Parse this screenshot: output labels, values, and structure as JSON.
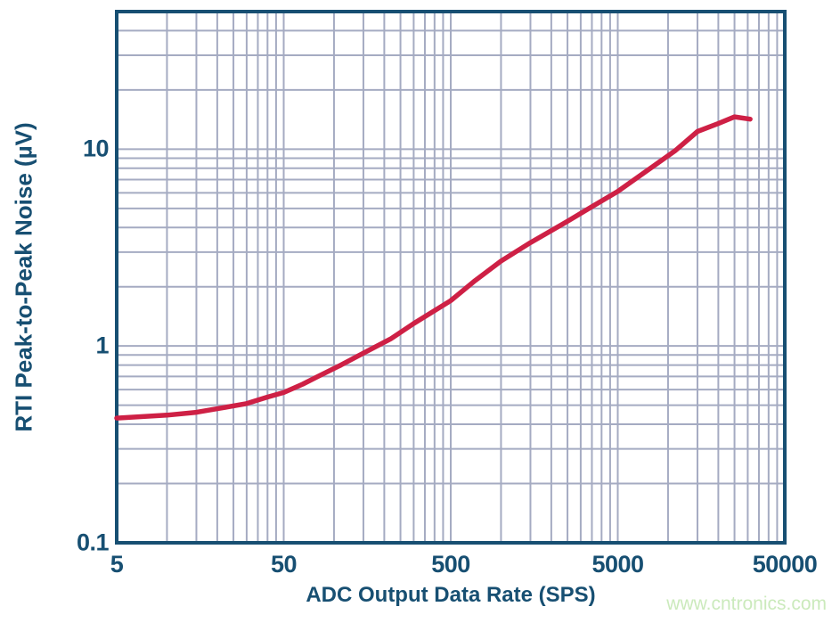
{
  "watermark": "www.cntronics.com",
  "chart_data": {
    "type": "line",
    "title": "",
    "xlabel": "ADC Output Data Rate (SPS)",
    "ylabel": "RTI Peak-to-Peak Noise (µV)",
    "x_scale": "log",
    "y_scale": "log",
    "xlim": [
      5,
      50000
    ],
    "ylim": [
      0.1,
      50
    ],
    "grid": "on (log major + minor)",
    "legend": "none",
    "x_ticks": [
      {
        "value": 5,
        "label": "5"
      },
      {
        "value": 50,
        "label": "50"
      },
      {
        "value": 500,
        "label": "500"
      },
      {
        "value": 5000,
        "label": "5000"
      },
      {
        "value": 50000,
        "label": "50000"
      }
    ],
    "y_ticks": [
      {
        "value": 0.1,
        "label": "0.1"
      },
      {
        "value": 1,
        "label": "1"
      },
      {
        "value": 10,
        "label": "10"
      }
    ],
    "minor_grid_multipliers": [
      2,
      3,
      4,
      5,
      6,
      7,
      8,
      9
    ],
    "series": [
      {
        "name": "RTI peak-to-peak noise vs output data rate",
        "x": [
          5,
          10,
          15,
          20,
          30,
          40,
          50,
          65,
          80,
          110,
          150,
          220,
          300,
          500,
          700,
          1000,
          1500,
          2500,
          3500,
          5000,
          8000,
          11000,
          15000,
          20000,
          25000,
          31000
        ],
        "y": [
          0.43,
          0.445,
          0.46,
          0.48,
          0.51,
          0.55,
          0.58,
          0.64,
          0.7,
          0.8,
          0.92,
          1.09,
          1.3,
          1.7,
          2.15,
          2.7,
          3.35,
          4.3,
          5.1,
          6.1,
          8.1,
          9.8,
          12.3,
          13.5,
          14.6,
          14.2
        ]
      }
    ],
    "colors": {
      "line": "#CE2045",
      "grid": "#A5ABC2",
      "axis_frame": "#174F72",
      "text": "#174F72",
      "watermark": "#CBEABC",
      "background": "#FFFFFF"
    }
  }
}
